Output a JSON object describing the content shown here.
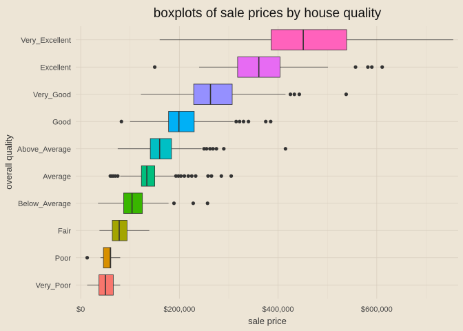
{
  "chart_data": {
    "type": "boxplot",
    "orientation": "horizontal",
    "title": "boxplots of sale prices by house quality",
    "xlabel": "sale price",
    "ylabel": "overall quality",
    "xlim": [
      -10000,
      765000
    ],
    "x_ticks": [
      0,
      200000,
      400000,
      600000
    ],
    "x_tick_labels": [
      "$0",
      "$200,000",
      "$400,000",
      "$600,000"
    ],
    "grid": true,
    "legend": "none",
    "categories": [
      "Very_Poor",
      "Poor",
      "Fair",
      "Below_Average",
      "Average",
      "Above_Average",
      "Good",
      "Very_Good",
      "Excellent",
      "Very_Excellent"
    ],
    "colors": [
      "#F8766D",
      "#D89000",
      "#A3A500",
      "#39B600",
      "#00BF7D",
      "#00BFC4",
      "#00B0F6",
      "#9590FF",
      "#E76BF3",
      "#FF62BC"
    ],
    "boxes": [
      {
        "category": "Very_Poor",
        "whisker_low": 13000,
        "q1": 37000,
        "median": 50000,
        "q3": 66000,
        "whisker_high": 80000,
        "outliers": []
      },
      {
        "category": "Poor",
        "whisker_low": 40000,
        "q1": 46000,
        "median": 60000,
        "q3": 61000,
        "whisker_high": 80000,
        "outliers": [
          13100
        ]
      },
      {
        "category": "Fair",
        "whisker_low": 38000,
        "q1": 64000,
        "median": 78000,
        "q3": 94000,
        "whisker_high": 139000,
        "outliers": []
      },
      {
        "category": "Below_Average",
        "whisker_low": 35000,
        "q1": 87000,
        "median": 104000,
        "q3": 125000,
        "whisker_high": 178000,
        "outliers": [
          189000,
          228000,
          257000
        ]
      },
      {
        "category": "Average",
        "whisker_low": 80000,
        "q1": 123000,
        "median": 134000,
        "q3": 150000,
        "whisker_high": 190000,
        "outliers": [
          60000,
          63000,
          66000,
          70000,
          75000,
          193000,
          198000,
          203000,
          210000,
          218000,
          225000,
          233000,
          258000,
          265000,
          285000,
          305000
        ]
      },
      {
        "category": "Above_Average",
        "whisker_low": 75000,
        "q1": 141000,
        "median": 160000,
        "q3": 184000,
        "whisker_high": 245000,
        "outliers": [
          250000,
          255000,
          262000,
          268000,
          275000,
          290000,
          415000
        ]
      },
      {
        "category": "Good",
        "whisker_low": 100000,
        "q1": 178000,
        "median": 199000,
        "q3": 230000,
        "whisker_high": 310000,
        "outliers": [
          82500,
          315000,
          322000,
          330000,
          340000,
          375000,
          385000
        ]
      },
      {
        "category": "Very_Good",
        "whisker_low": 122000,
        "q1": 229000,
        "median": 263000,
        "q3": 307000,
        "whisker_high": 415000,
        "outliers": [
          425000,
          433000,
          443000,
          538000
        ]
      },
      {
        "category": "Excellent",
        "whisker_low": 240000,
        "q1": 318000,
        "median": 361000,
        "q3": 404000,
        "whisker_high": 501000,
        "outliers": [
          150000,
          557000,
          582000,
          590000,
          611000
        ]
      },
      {
        "category": "Very_Excellent",
        "whisker_low": 160000,
        "q1": 386000,
        "median": 451000,
        "q3": 539000,
        "whisker_high": 755000,
        "outliers": []
      }
    ]
  }
}
